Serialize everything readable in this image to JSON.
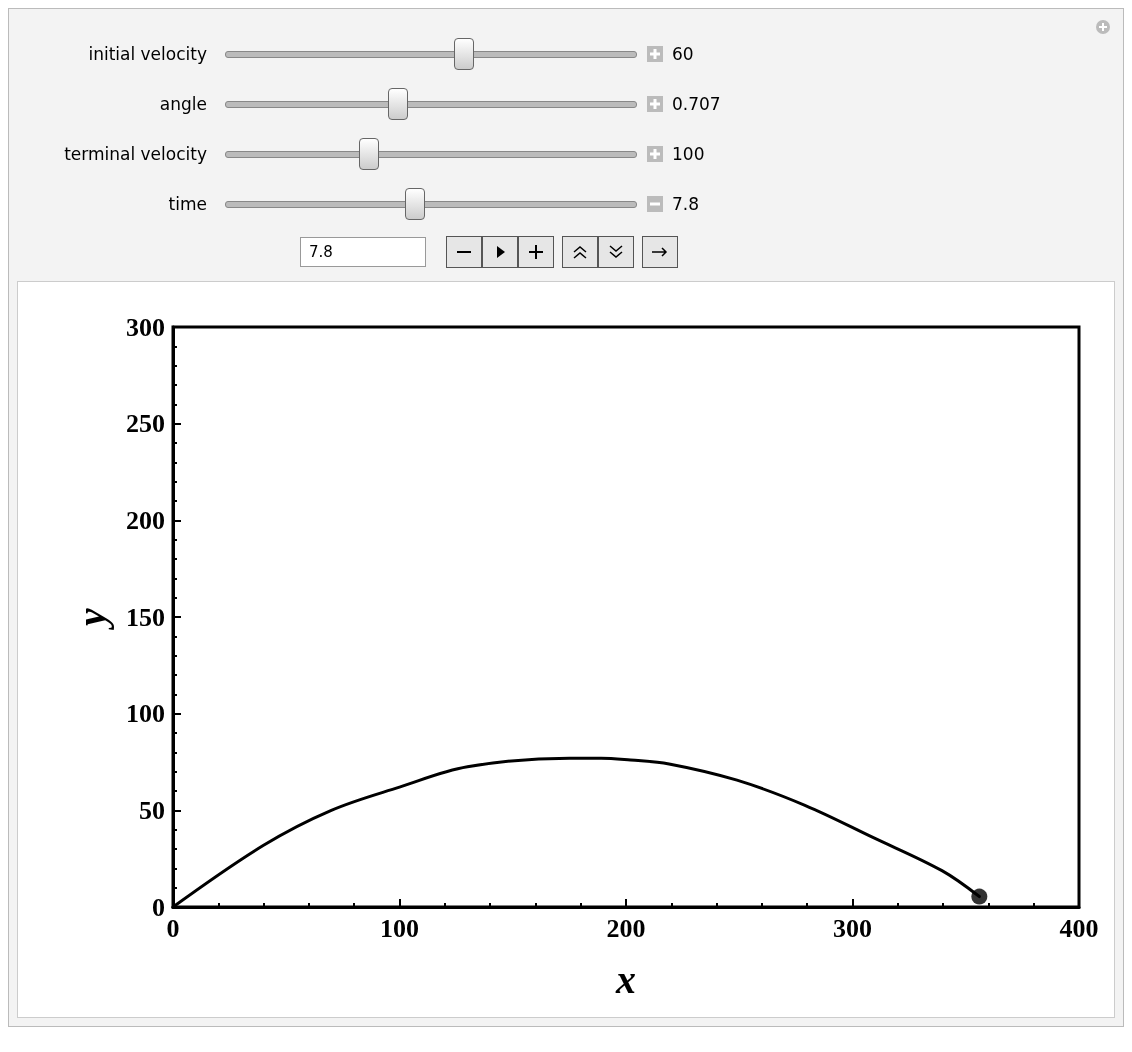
{
  "chart_data": {
    "type": "line",
    "xlabel": "x",
    "ylabel": "y",
    "xlim": [
      0,
      400
    ],
    "ylim": [
      0,
      300
    ],
    "xticks": [
      0,
      100,
      200,
      300,
      400
    ],
    "yticks": [
      0,
      50,
      100,
      150,
      200,
      250,
      300
    ],
    "grid": false,
    "marker": "none",
    "line_style": "solid",
    "annotations": [
      "initial velocity",
      "60",
      "angle",
      "0.707",
      "terminal velocity",
      "100",
      "time",
      "7.8",
      "7.8"
    ],
    "series": [
      {
        "color": "#000000",
        "x": [
          0,
          39.8,
          69.9,
          100,
          130,
          175,
          189,
          202,
          219,
          249,
          279,
          309,
          339.5,
          356
        ],
        "values": [
          0,
          31.8,
          50,
          62,
          72.5,
          77,
          77,
          76,
          74,
          65.6,
          52.6,
          36,
          18.8,
          5.4
        ]
      },
      {
        "type": "scatter",
        "color": "#000000",
        "marker": "circle",
        "x": [
          356
        ],
        "values": [
          5.4
        ]
      }
    ]
  }
}
